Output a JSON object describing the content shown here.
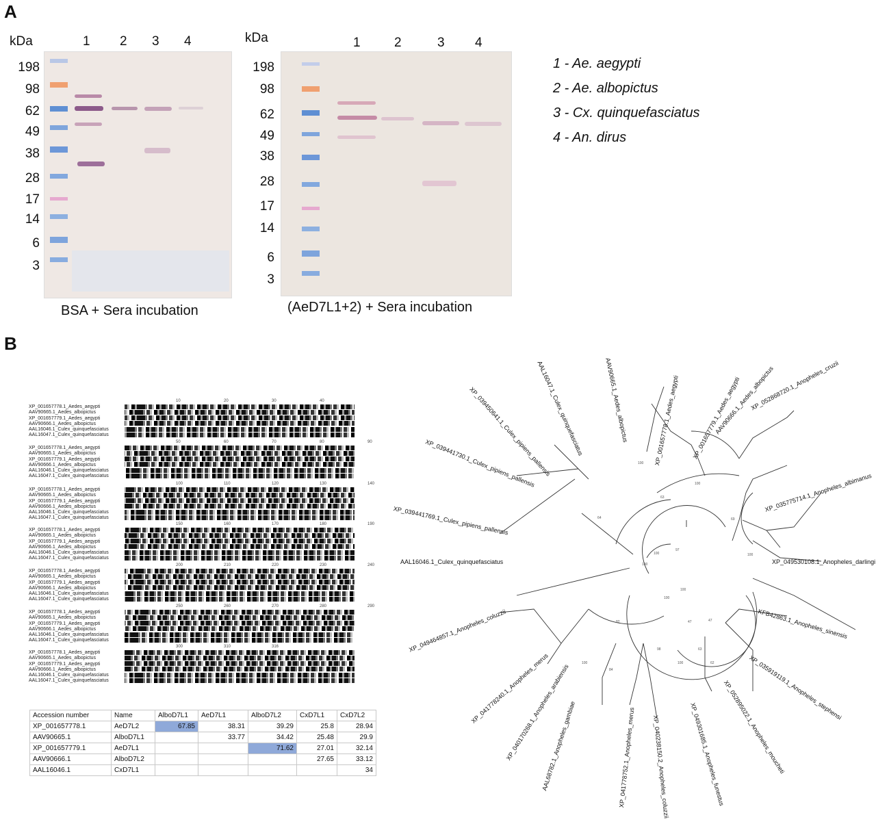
{
  "panel_a": {
    "letter": "A",
    "kda_label": "kDa",
    "left_blot": {
      "markers": [
        "198",
        "98",
        "62",
        "49",
        "38",
        "28",
        "17",
        "14",
        "6",
        "3"
      ],
      "lanes": [
        "1",
        "2",
        "3",
        "4"
      ],
      "caption": "BSA + Sera incubation"
    },
    "right_blot": {
      "markers": [
        "198",
        "98",
        "62",
        "49",
        "38",
        "28",
        "17",
        "14",
        "6",
        "3"
      ],
      "lanes": [
        "1",
        "2",
        "3",
        "4"
      ],
      "caption": "(AeD7L1+2) + Sera incubation"
    },
    "legend": [
      "1 - Ae. aegypti",
      "2 - Ae. albopictus",
      "3 - Cx. quinquefasciatus",
      "4 - An. dirus"
    ]
  },
  "panel_b": {
    "letter": "B",
    "alignment": {
      "sequence_names": [
        "XP_001657778.1_Aedes_aegypti",
        "AAV90665.1_Aedes_albopictus",
        "XP_001657779.1_Aedes_aegypti",
        "AAV90666.1_Aedes_albopictus",
        "AAL16046.1_Culex_quinquefasciatus",
        "AAL16047.1_Culex_quinquefasciatus"
      ],
      "rulers": [
        "10",
        "20",
        "30",
        "40",
        "50",
        "60",
        "70",
        "80",
        "90",
        "100",
        "110",
        "120",
        "130",
        "140",
        "150",
        "160",
        "170",
        "180",
        "190",
        "200",
        "210",
        "220",
        "230",
        "240",
        "250",
        "260",
        "270",
        "280",
        "290",
        "300",
        "310",
        "316"
      ]
    },
    "identity_table": {
      "headers": [
        "Accession number",
        "Name",
        "AlboD7L1",
        "AeD7L1",
        "AlboD7L2",
        "CxD7L1",
        "CxD7L2"
      ],
      "rows": [
        {
          "acc": "XP_001657778.1",
          "name": "AeD7L2",
          "v": [
            "67.85",
            "38.31",
            "39.29",
            "25.8",
            "28.94"
          ]
        },
        {
          "acc": "AAV90665.1",
          "name": "AlboD7L1",
          "v": [
            "",
            "33.77",
            "34.42",
            "25.48",
            "29.9"
          ]
        },
        {
          "acc": "XP_001657779.1",
          "name": "AeD7L1",
          "v": [
            "",
            "",
            "71.62",
            "27.01",
            "32.14"
          ]
        },
        {
          "acc": "AAV90666.1",
          "name": "AlboD7L2",
          "v": [
            "",
            "",
            "",
            "27.65",
            "33.12"
          ]
        },
        {
          "acc": "AAL16046.1",
          "name": "CxD7L1",
          "v": [
            "",
            "",
            "",
            "",
            "34"
          ]
        }
      ]
    },
    "tree": {
      "leaves": [
        "AAV90665.1_Aedes_albopictus",
        "XP_001657778.1_Aedes_aegypti",
        "XP_001657779.1_Aedes_aegypti",
        "AAV90666.1_Aedes_albopictus",
        "XP_052868720.1_Anopheles_cruzii",
        "XP_035775714.1_Anopheles_albimanus",
        "XP_049530108.1_Anopheles_darlingi",
        "KFB42863.1_Anopheles_sinensis",
        "XP_035919119.1_Anopheles_stephensi",
        "XP_052895022.1_Anopheles_moucheti",
        "XP_049301685.1_Anopheles_funestus",
        "XP_040238150.2_Anopheles_coluzzii",
        "XP_041778752.1_Anopheles_merus",
        "AAL68782.1_Anopheles_gambiae",
        "XP_040170268.1_Anopheles_arabiensis",
        "XP_041778240.1_Anopheles_merus",
        "XP_049464857.1_Anopheles_coluzzii",
        "AAL16046.1_Culex_quinquefasciatus",
        "XP_039441769.1_Culex_pipiens_pallensis",
        "XP_039441730.1_Culex_pipiens_pallensis",
        "XP_039450641.1_Culex_pipiens_pallensis",
        "AAL16047.1_Culex_quinquefasciatus"
      ],
      "bootstrap": [
        "100",
        "63",
        "100",
        "64",
        "97",
        "100",
        "100",
        "69",
        "100",
        "100",
        "47",
        "98",
        "100",
        "82",
        "100",
        "84",
        "63",
        "62",
        "47",
        "100"
      ]
    }
  }
}
